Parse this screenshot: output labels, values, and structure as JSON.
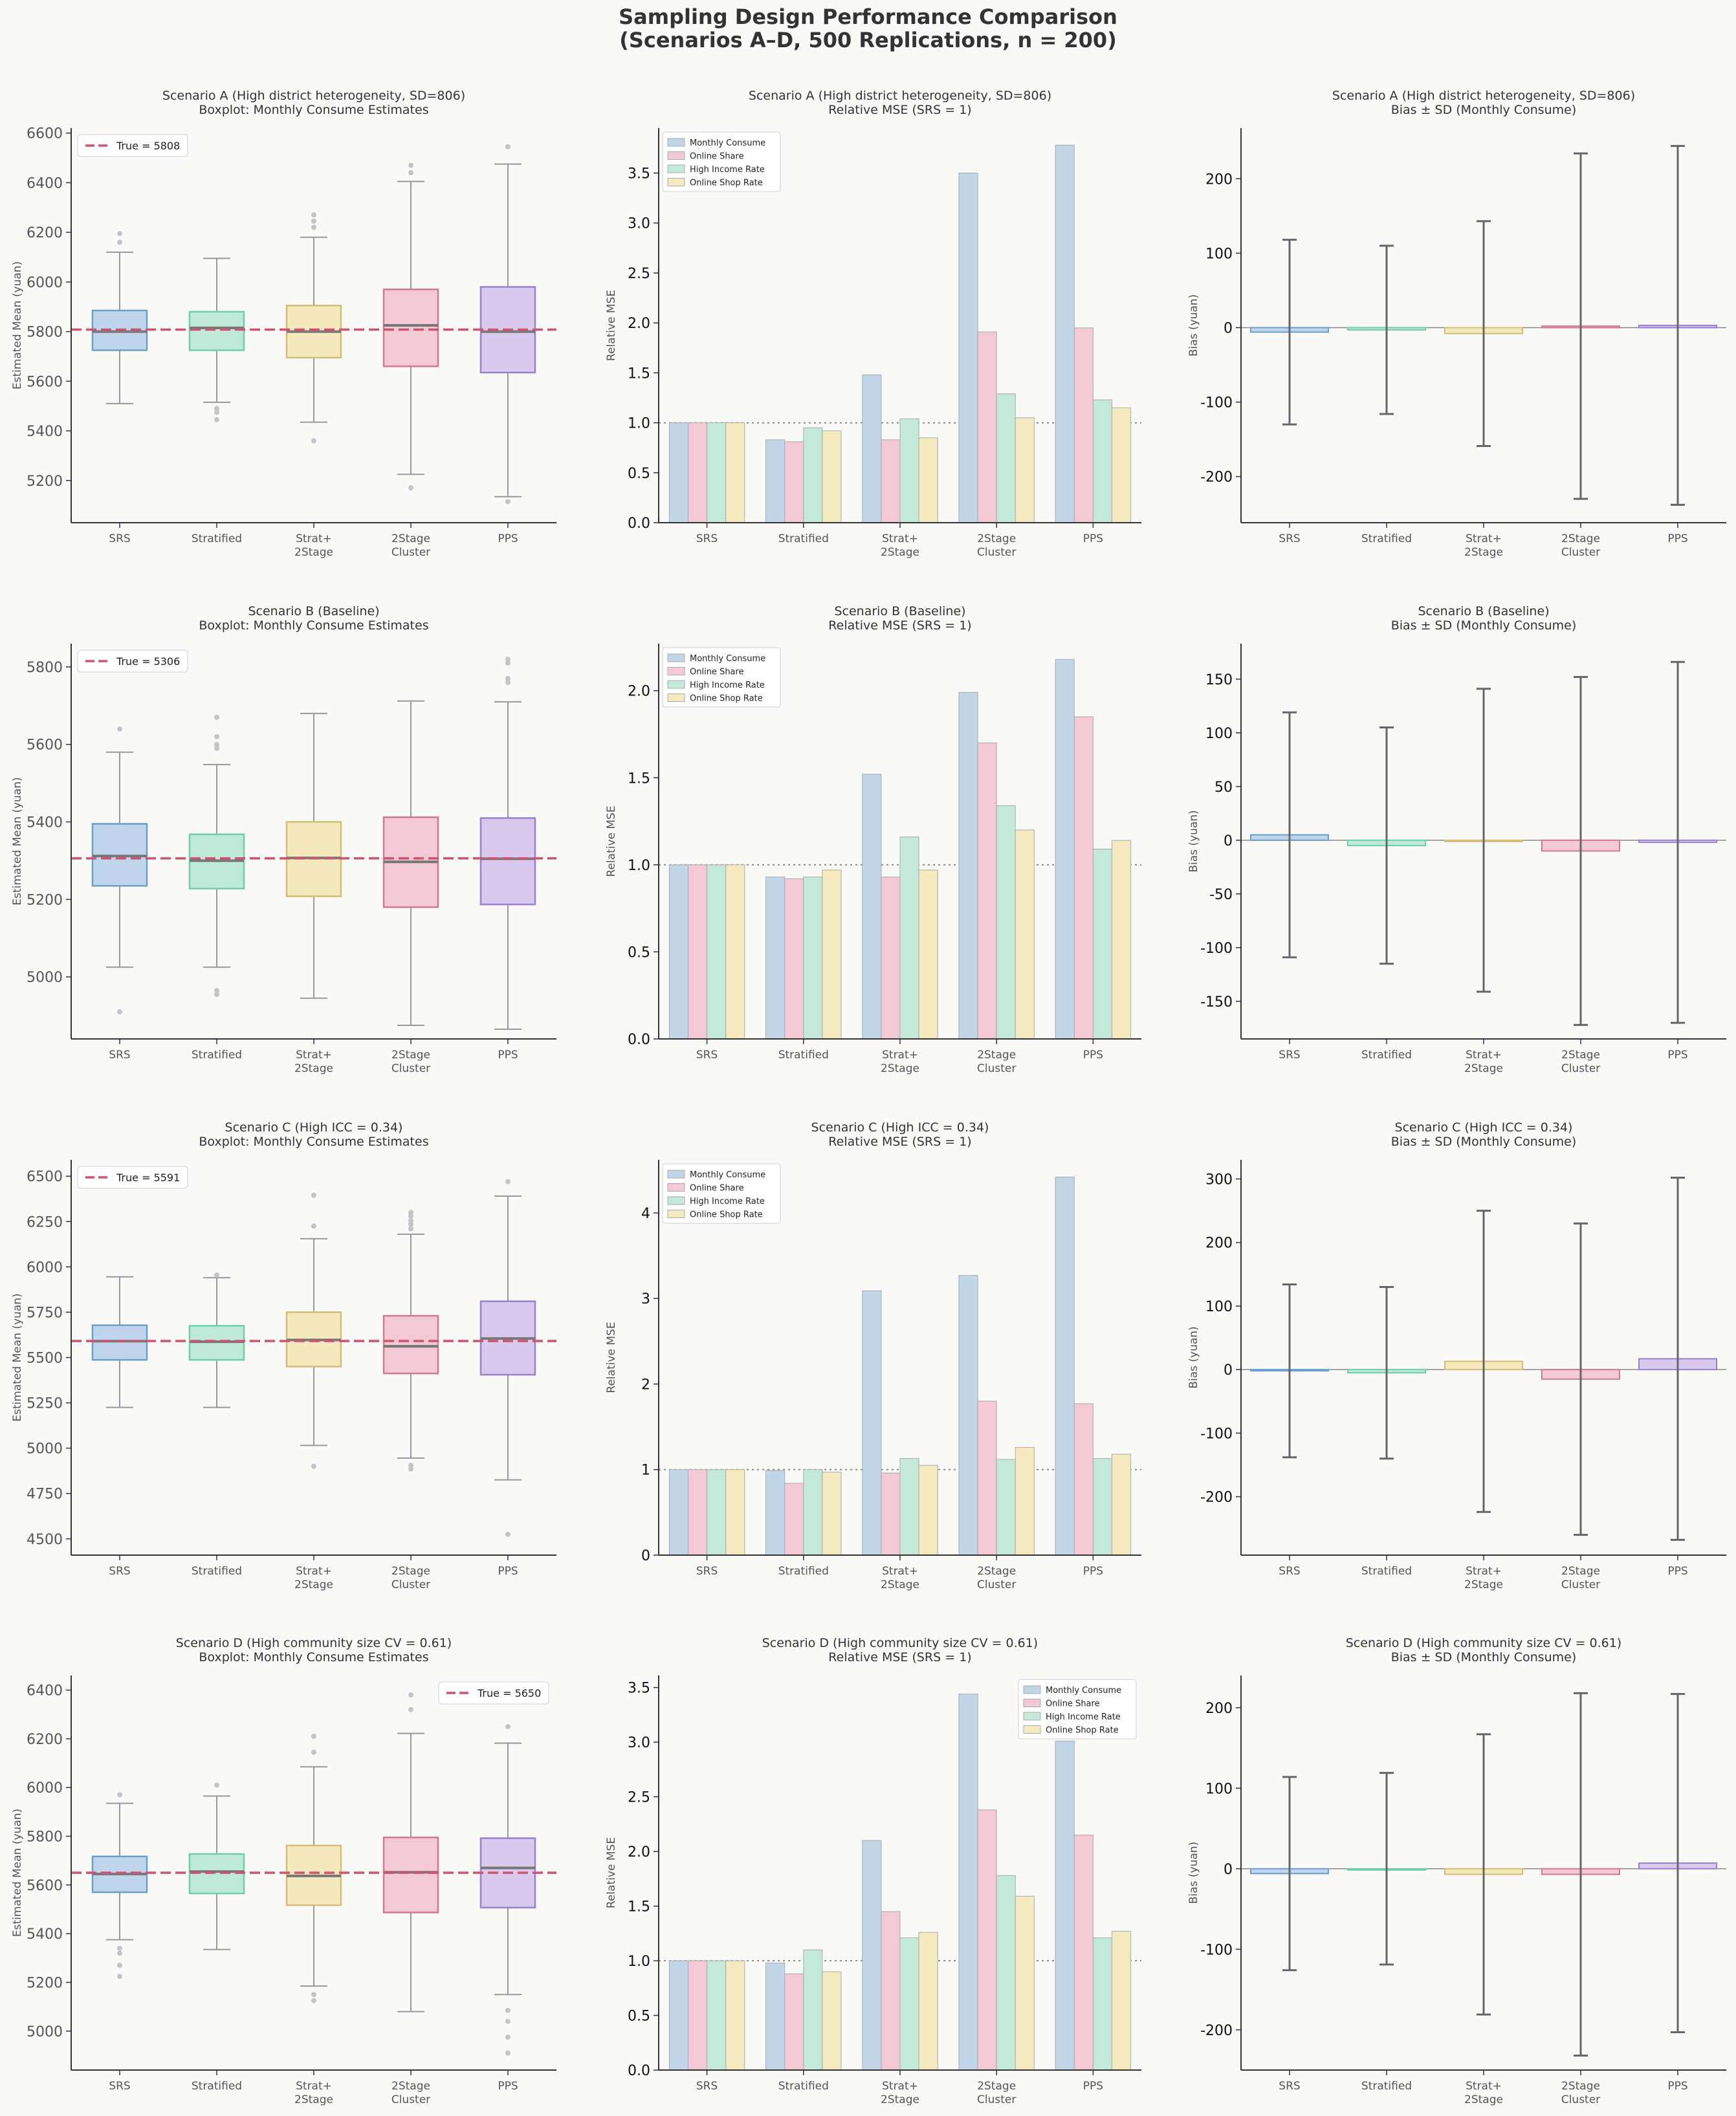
{
  "suptitle": [
    "Sampling Design Performance Comparison",
    "(Scenarios A–D, 500 Replications, n = 200)"
  ],
  "colors": {
    "background": "#f9f9f7",
    "design_fill": [
      "#bed5ec",
      "#c0ead8",
      "#f4e8bd",
      "#f2c9d4",
      "#d9c9ec"
    ],
    "design_edge": [
      "#6c9fcc",
      "#6fcfa6",
      "#d6bd73",
      "#d4798f",
      "#9d7fd2"
    ],
    "metric_fill": [
      "#c1d7e9",
      "#f2c9d4",
      "#c3ead9",
      "#f4e9bf"
    ],
    "true_line": "#d0526d",
    "axis": "#333333"
  },
  "chart_data": [
    {
      "type": "box",
      "scenario": "A",
      "title": "Scenario A  (High district heterogeneity, SD=806)",
      "subtitle": "Boxplot: Monthly Consume Estimates",
      "ylabel": "Estimated Mean (yuan)",
      "categories": [
        "SRS",
        "Stratified",
        "Strat+\n2Stage",
        "2Stage\nCluster",
        "PPS"
      ],
      "ylim": [
        5030,
        6620
      ],
      "yticks": [
        5200,
        5400,
        5600,
        5800,
        6000,
        6200,
        6400,
        6600
      ],
      "true_value": 5808,
      "legend_label": "True = 5808",
      "legend_loc": "upper-left",
      "boxes": [
        {
          "q1": 5725,
          "median": 5800,
          "q3": 5885,
          "whislo": 5510,
          "whishi": 6120,
          "fliers": [
            6160,
            6195
          ]
        },
        {
          "q1": 5725,
          "median": 5815,
          "q3": 5880,
          "whislo": 5515,
          "whishi": 6095,
          "fliers": [
            5490,
            5475,
            5445
          ]
        },
        {
          "q1": 5695,
          "median": 5800,
          "q3": 5905,
          "whislo": 5435,
          "whishi": 6180,
          "fliers": [
            6220,
            6245,
            6270,
            5360
          ]
        },
        {
          "q1": 5660,
          "median": 5825,
          "q3": 5970,
          "whislo": 5225,
          "whishi": 6405,
          "fliers": [
            6440,
            6470,
            5170
          ]
        },
        {
          "q1": 5635,
          "median": 5800,
          "q3": 5980,
          "whislo": 5135,
          "whishi": 6475,
          "fliers": [
            6545,
            5115
          ]
        }
      ]
    },
    {
      "type": "bar",
      "scenario": "A",
      "title": "Scenario A  (High district heterogeneity, SD=806)",
      "subtitle": "Relative MSE (SRS = 1)",
      "ylabel": "Relative MSE",
      "categories": [
        "SRS",
        "Stratified",
        "Strat+\n2Stage",
        "2Stage\nCluster",
        "PPS"
      ],
      "ylim": [
        0,
        3.95
      ],
      "yticks": [
        0.0,
        0.5,
        1.0,
        1.5,
        2.0,
        2.5,
        3.0,
        3.5
      ],
      "ytick_labels": [
        "0.0",
        "0.5",
        "1.0",
        "1.5",
        "2.0",
        "2.5",
        "3.0",
        "3.5"
      ],
      "reference_line": 1.0,
      "legend_loc": "upper-left",
      "series": [
        {
          "name": "Monthly Consume",
          "values": [
            1.0,
            0.83,
            1.48,
            3.5,
            3.78
          ]
        },
        {
          "name": "Online Share",
          "values": [
            1.0,
            0.81,
            0.83,
            1.91,
            1.95
          ]
        },
        {
          "name": "High Income Rate",
          "values": [
            1.0,
            0.95,
            1.04,
            1.29,
            1.23
          ]
        },
        {
          "name": "Online Shop Rate",
          "values": [
            1.0,
            0.92,
            0.85,
            1.05,
            1.15
          ]
        }
      ]
    },
    {
      "type": "errorbar",
      "scenario": "A",
      "title": "Scenario A  (High district heterogeneity, SD=806)",
      "subtitle": "Bias ± SD  (Monthly Consume)",
      "ylabel": "Bias (yuan)",
      "categories": [
        "SRS",
        "Stratified",
        "Strat+\n2Stage",
        "2Stage\nCluster",
        "PPS"
      ],
      "ylim": [
        -262,
        268
      ],
      "yticks": [
        -200,
        -100,
        0,
        100,
        200
      ],
      "bias": [
        -6,
        -3,
        -8,
        2,
        3
      ],
      "sd": [
        124,
        113,
        151,
        232,
        241
      ]
    },
    {
      "type": "box",
      "scenario": "B",
      "title": "Scenario B  (Baseline)",
      "subtitle": "Boxplot: Monthly Consume Estimates",
      "ylabel": "Estimated Mean (yuan)",
      "categories": [
        "SRS",
        "Stratified",
        "Strat+\n2Stage",
        "2Stage\nCluster",
        "PPS"
      ],
      "ylim": [
        4840,
        5860
      ],
      "yticks": [
        5000,
        5200,
        5400,
        5600,
        5800
      ],
      "true_value": 5306,
      "legend_label": "True = 5306",
      "legend_loc": "upper-left",
      "boxes": [
        {
          "q1": 5235,
          "median": 5312,
          "q3": 5395,
          "whislo": 5025,
          "whishi": 5580,
          "fliers": [
            5640,
            4910
          ]
        },
        {
          "q1": 5228,
          "median": 5300,
          "q3": 5368,
          "whislo": 5025,
          "whishi": 5548,
          "fliers": [
            5590,
            5600,
            5620,
            5670,
            4965,
            4955
          ]
        },
        {
          "q1": 5208,
          "median": 5307,
          "q3": 5400,
          "whislo": 4945,
          "whishi": 5680,
          "fliers": []
        },
        {
          "q1": 5180,
          "median": 5297,
          "q3": 5412,
          "whislo": 4875,
          "whishi": 5712,
          "fliers": []
        },
        {
          "q1": 5187,
          "median": 5305,
          "q3": 5410,
          "whislo": 4865,
          "whishi": 5710,
          "fliers": [
            5760,
            5770,
            5810,
            5820
          ]
        }
      ]
    },
    {
      "type": "bar",
      "scenario": "B",
      "title": "Scenario B  (Baseline)",
      "subtitle": "Relative MSE (SRS = 1)",
      "ylabel": "Relative MSE",
      "categories": [
        "SRS",
        "Stratified",
        "Strat+\n2Stage",
        "2Stage\nCluster",
        "PPS"
      ],
      "ylim": [
        0,
        2.27
      ],
      "yticks": [
        0.0,
        0.5,
        1.0,
        1.5,
        2.0
      ],
      "ytick_labels": [
        "0.0",
        "0.5",
        "1.0",
        "1.5",
        "2.0"
      ],
      "reference_line": 1.0,
      "legend_loc": "upper-left",
      "series": [
        {
          "name": "Monthly Consume",
          "values": [
            1.0,
            0.93,
            1.52,
            1.99,
            2.18
          ]
        },
        {
          "name": "Online Share",
          "values": [
            1.0,
            0.92,
            0.93,
            1.7,
            1.85
          ]
        },
        {
          "name": "High Income Rate",
          "values": [
            1.0,
            0.93,
            1.16,
            1.34,
            1.09
          ]
        },
        {
          "name": "Online Shop Rate",
          "values": [
            1.0,
            0.97,
            0.97,
            1.2,
            1.14
          ]
        }
      ]
    },
    {
      "type": "errorbar",
      "scenario": "B",
      "title": "Scenario B  (Baseline)",
      "subtitle": "Bias ± SD  (Monthly Consume)",
      "ylabel": "Bias (yuan)",
      "categories": [
        "SRS",
        "Stratified",
        "Strat+\n2Stage",
        "2Stage\nCluster",
        "PPS"
      ],
      "ylim": [
        -185,
        183
      ],
      "yticks": [
        -150,
        -100,
        -50,
        0,
        50,
        100,
        150
      ],
      "bias": [
        5,
        -5,
        0,
        -10,
        -2
      ],
      "sd": [
        114,
        110,
        141,
        162,
        168
      ]
    },
    {
      "type": "box",
      "scenario": "C",
      "title": "Scenario C  (High ICC = 0.34)",
      "subtitle": "Boxplot: Monthly Consume Estimates",
      "ylabel": "Estimated Mean (yuan)",
      "categories": [
        "SRS",
        "Stratified",
        "Strat+\n2Stage",
        "2Stage\nCluster",
        "PPS"
      ],
      "ylim": [
        4410,
        6590
      ],
      "yticks": [
        4500,
        4750,
        5000,
        5250,
        5500,
        5750,
        6000,
        6250,
        6500
      ],
      "true_value": 5591,
      "legend_label": "True = 5591",
      "legend_loc": "upper-left",
      "boxes": [
        {
          "q1": 5487,
          "median": 5590,
          "q3": 5678,
          "whislo": 5225,
          "whishi": 5945,
          "fliers": []
        },
        {
          "q1": 5487,
          "median": 5587,
          "q3": 5675,
          "whislo": 5225,
          "whishi": 5940,
          "fliers": [
            5955
          ]
        },
        {
          "q1": 5450,
          "median": 5597,
          "q3": 5750,
          "whislo": 5015,
          "whishi": 6155,
          "fliers": [
            6225,
            6395,
            4900
          ]
        },
        {
          "q1": 5412,
          "median": 5562,
          "q3": 5730,
          "whislo": 4945,
          "whishi": 6180,
          "fliers": [
            6210,
            6235,
            6255,
            6280,
            6300,
            4905,
            4885
          ]
        },
        {
          "q1": 5405,
          "median": 5605,
          "q3": 5810,
          "whislo": 4825,
          "whishi": 6390,
          "fliers": [
            6470,
            4525
          ]
        }
      ]
    },
    {
      "type": "bar",
      "scenario": "C",
      "title": "Scenario C  (High ICC = 0.34)",
      "subtitle": "Relative MSE (SRS = 1)",
      "ylabel": "Relative MSE",
      "categories": [
        "SRS",
        "Stratified",
        "Strat+\n2Stage",
        "2Stage\nCluster",
        "PPS"
      ],
      "ylim": [
        0,
        4.62
      ],
      "yticks": [
        0,
        1,
        2,
        3,
        4
      ],
      "ytick_labels": [
        "0",
        "1",
        "2",
        "3",
        "4"
      ],
      "reference_line": 1.0,
      "legend_loc": "upper-left",
      "series": [
        {
          "name": "Monthly Consume",
          "values": [
            1.0,
            0.99,
            3.09,
            3.27,
            4.42
          ]
        },
        {
          "name": "Online Share",
          "values": [
            1.0,
            0.84,
            0.96,
            1.8,
            1.77
          ]
        },
        {
          "name": "High Income Rate",
          "values": [
            1.0,
            1.0,
            1.13,
            1.12,
            1.13
          ]
        },
        {
          "name": "Online Shop Rate",
          "values": [
            1.0,
            0.97,
            1.05,
            1.26,
            1.18
          ]
        }
      ]
    },
    {
      "type": "errorbar",
      "scenario": "C",
      "title": "Scenario C  (High ICC = 0.34)",
      "subtitle": "Bias ± SD  (Monthly Consume)",
      "ylabel": "Bias (yuan)",
      "categories": [
        "SRS",
        "Stratified",
        "Strat+\n2Stage",
        "2Stage\nCluster",
        "PPS"
      ],
      "ylim": [
        -292,
        330
      ],
      "yticks": [
        -200,
        -100,
        0,
        100,
        200,
        300
      ],
      "bias": [
        -2,
        -5,
        13,
        -15,
        17
      ],
      "sd": [
        136,
        135,
        237,
        245,
        285
      ]
    },
    {
      "type": "box",
      "scenario": "D",
      "title": "Scenario D  (High community size CV = 0.61)",
      "subtitle": "Boxplot: Monthly Consume Estimates",
      "ylabel": "Estimated Mean (yuan)",
      "categories": [
        "SRS",
        "Stratified",
        "Strat+\n2Stage",
        "2Stage\nCluster",
        "PPS"
      ],
      "ylim": [
        4840,
        6460
      ],
      "yticks": [
        5000,
        5200,
        5400,
        5600,
        5800,
        6000,
        6200,
        6400
      ],
      "true_value": 5650,
      "legend_label": "True = 5650",
      "legend_loc": "upper-right",
      "boxes": [
        {
          "q1": 5570,
          "median": 5645,
          "q3": 5717,
          "whislo": 5375,
          "whishi": 5935,
          "fliers": [
            5970,
            5340,
            5320,
            5270,
            5225
          ]
        },
        {
          "q1": 5565,
          "median": 5655,
          "q3": 5727,
          "whislo": 5335,
          "whishi": 5965,
          "fliers": [
            6010
          ]
        },
        {
          "q1": 5517,
          "median": 5637,
          "q3": 5762,
          "whislo": 5185,
          "whishi": 6085,
          "fliers": [
            6145,
            6210,
            5150,
            5125
          ]
        },
        {
          "q1": 5487,
          "median": 5652,
          "q3": 5795,
          "whislo": 5080,
          "whishi": 6222,
          "fliers": [
            6320,
            6380
          ]
        },
        {
          "q1": 5507,
          "median": 5670,
          "q3": 5792,
          "whislo": 5150,
          "whishi": 6182,
          "fliers": [
            6250,
            5085,
            5040,
            4975,
            4910
          ]
        }
      ]
    },
    {
      "type": "bar",
      "scenario": "D",
      "title": "Scenario D  (High community size CV = 0.61)",
      "subtitle": "Relative MSE (SRS = 1)",
      "ylabel": "Relative MSE",
      "categories": [
        "SRS",
        "Stratified",
        "Strat+\n2Stage",
        "2Stage\nCluster",
        "PPS"
      ],
      "ylim": [
        0,
        3.61
      ],
      "yticks": [
        0.0,
        0.5,
        1.0,
        1.5,
        2.0,
        2.5,
        3.0,
        3.5
      ],
      "ytick_labels": [
        "0.0",
        "0.5",
        "1.0",
        "1.5",
        "2.0",
        "2.5",
        "3.0",
        "3.5"
      ],
      "reference_line": 1.0,
      "legend_loc": "upper-right",
      "series": [
        {
          "name": "Monthly Consume",
          "values": [
            1.0,
            0.98,
            2.1,
            3.44,
            3.01
          ]
        },
        {
          "name": "Online Share",
          "values": [
            1.0,
            0.88,
            1.45,
            2.38,
            2.15
          ]
        },
        {
          "name": "High Income Rate",
          "values": [
            1.0,
            1.1,
            1.21,
            1.78,
            1.21
          ]
        },
        {
          "name": "Online Shop Rate",
          "values": [
            1.0,
            0.9,
            1.26,
            1.59,
            1.27
          ]
        }
      ]
    },
    {
      "type": "errorbar",
      "scenario": "D",
      "title": "Scenario D  (High community size CV = 0.61)",
      "subtitle": "Bias ± SD  (Monthly Consume)",
      "ylabel": "Bias (yuan)",
      "categories": [
        "SRS",
        "Stratified",
        "Strat+\n2Stage",
        "2Stage\nCluster",
        "PPS"
      ],
      "ylim": [
        -250,
        240
      ],
      "yticks": [
        -200,
        -100,
        0,
        100,
        200
      ],
      "bias": [
        -6,
        0,
        -7,
        -7,
        7
      ],
      "sd": [
        120,
        119,
        174,
        225,
        210
      ]
    }
  ]
}
